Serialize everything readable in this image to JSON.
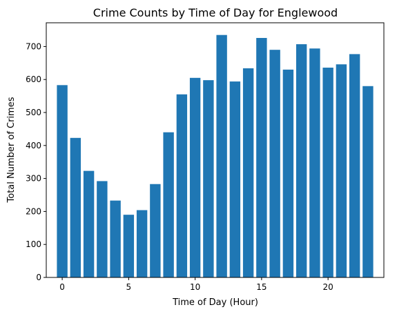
{
  "chart_data": {
    "type": "bar",
    "title": "Crime Counts by Time of Day for Englewood",
    "xlabel": "Time of Day (Hour)",
    "ylabel": "Total Number of Crimes",
    "x": [
      0,
      1,
      2,
      3,
      4,
      5,
      6,
      7,
      8,
      9,
      10,
      11,
      12,
      13,
      14,
      15,
      16,
      17,
      18,
      19,
      20,
      21,
      22,
      23
    ],
    "values": [
      583,
      423,
      323,
      292,
      233,
      190,
      204,
      283,
      440,
      555,
      605,
      598,
      735,
      594,
      634,
      726,
      690,
      630,
      707,
      694,
      636,
      646,
      677,
      580
    ],
    "xlim": [
      -1.2,
      24.2
    ],
    "ylim": [
      0,
      772
    ],
    "xticks": [
      0,
      5,
      10,
      15,
      20
    ],
    "yticks": [
      0,
      100,
      200,
      300,
      400,
      500,
      600,
      700
    ],
    "bar_width": 0.8,
    "bar_color": "#1f77b4",
    "grid": false,
    "legend": "none"
  }
}
